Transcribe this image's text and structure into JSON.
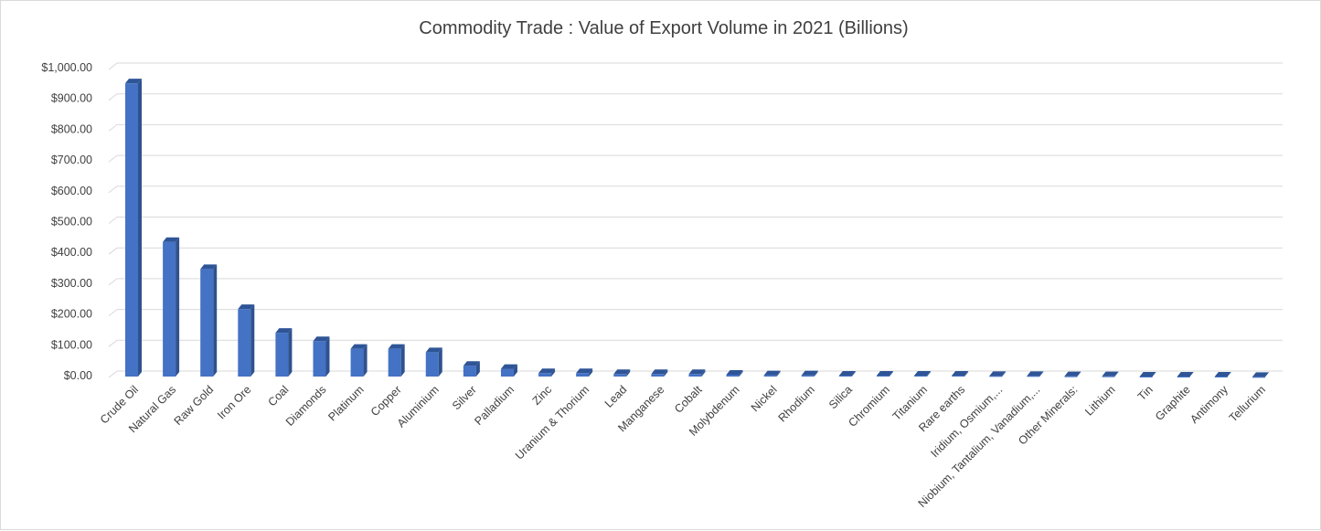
{
  "chart_data": {
    "type": "bar",
    "style": "3d-column",
    "title": "Commodity Trade : Value of Export Volume in 2021 (Billions)",
    "xlabel": "",
    "ylabel": "",
    "ylim": [
      0,
      1000
    ],
    "ytick_step": 100,
    "ytick_labels": [
      "$0.00",
      "$100.00",
      "$200.00",
      "$300.00",
      "$400.00",
      "$500.00",
      "$600.00",
      "$700.00",
      "$800.00",
      "$900.00",
      "$1,000.00"
    ],
    "grid": true,
    "legend": "none",
    "bar_color": "#4472c4",
    "bar_side_color": "#2f528f",
    "bar_top_color": "#2f5597",
    "categories": [
      "Crude Oil",
      "Natural Gas",
      "Raw Gold",
      "Iron Ore",
      "Coal",
      "Diamonds",
      "Platinum",
      "Copper",
      "Aluminium",
      "Silver",
      "Palladium",
      "Zinc",
      "Uranium & Thorium",
      "Lead",
      "Manganese",
      "Cobalt",
      "Molybdenum",
      "Nickel",
      "Rhodium",
      "Silica",
      "Chromium",
      "Titanium",
      "Rare earths",
      "Iridium, Osmium,...",
      "Niobium, Tantalium, Vanadium,...",
      "Other Minerals:",
      "Lithium",
      "Tin",
      "Graphite",
      "Antimony",
      "Tellurium"
    ],
    "values": [
      955,
      440,
      352,
      222,
      145,
      118,
      93,
      93,
      82,
      38,
      28,
      14,
      14,
      11,
      11,
      11,
      9,
      7,
      7,
      6,
      6,
      6,
      6,
      5,
      5,
      4,
      4,
      3,
      3,
      3,
      2
    ]
  }
}
